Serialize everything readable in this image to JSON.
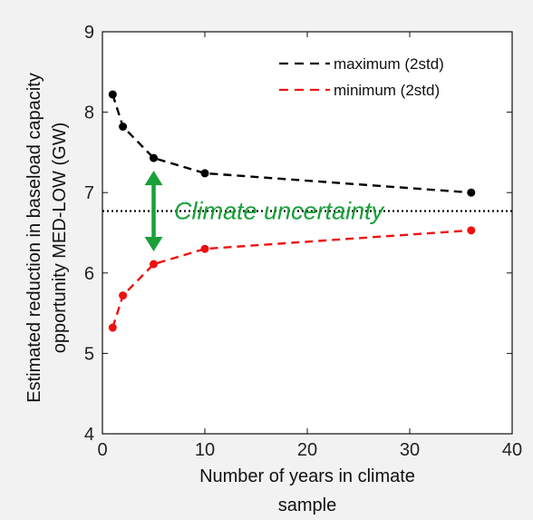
{
  "chart_data": {
    "type": "line",
    "xlabel_lines": [
      "Number of years in climate",
      "sample"
    ],
    "ylabel_lines": [
      "Estimated reduction in baseload capacity",
      "opportunity MED-LOW (GW)"
    ],
    "xlim": [
      0,
      40
    ],
    "ylim": [
      4,
      9
    ],
    "xticks": [
      0,
      10,
      20,
      30,
      40
    ],
    "yticks": [
      4,
      5,
      6,
      7,
      8,
      9
    ],
    "xtick_labels": [
      "0",
      "10",
      "20",
      "30",
      "40"
    ],
    "ytick_labels": [
      "4",
      "5",
      "6",
      "7",
      "8",
      "9"
    ],
    "grid": false,
    "legend_position": "top-right",
    "series": [
      {
        "name": "maximum (2std)",
        "color": "#000000",
        "line_style": "dashed",
        "x": [
          1,
          2,
          5,
          10,
          36
        ],
        "y": [
          8.22,
          7.82,
          7.43,
          7.24,
          7.0
        ]
      },
      {
        "name": "minimum (2std)",
        "color": "#ee1111",
        "line_style": "dashed",
        "x": [
          1,
          2,
          5,
          10,
          36
        ],
        "y": [
          5.32,
          5.72,
          6.11,
          6.3,
          6.53
        ]
      }
    ],
    "reference_line": {
      "y": 6.77,
      "color": "#000000",
      "line_style": "dotted"
    },
    "annotation": {
      "text": "Climate uncertainty",
      "color": "#1aa03a",
      "arrow_x": 5,
      "arrow_y_range": [
        6.11,
        7.43
      ]
    }
  }
}
